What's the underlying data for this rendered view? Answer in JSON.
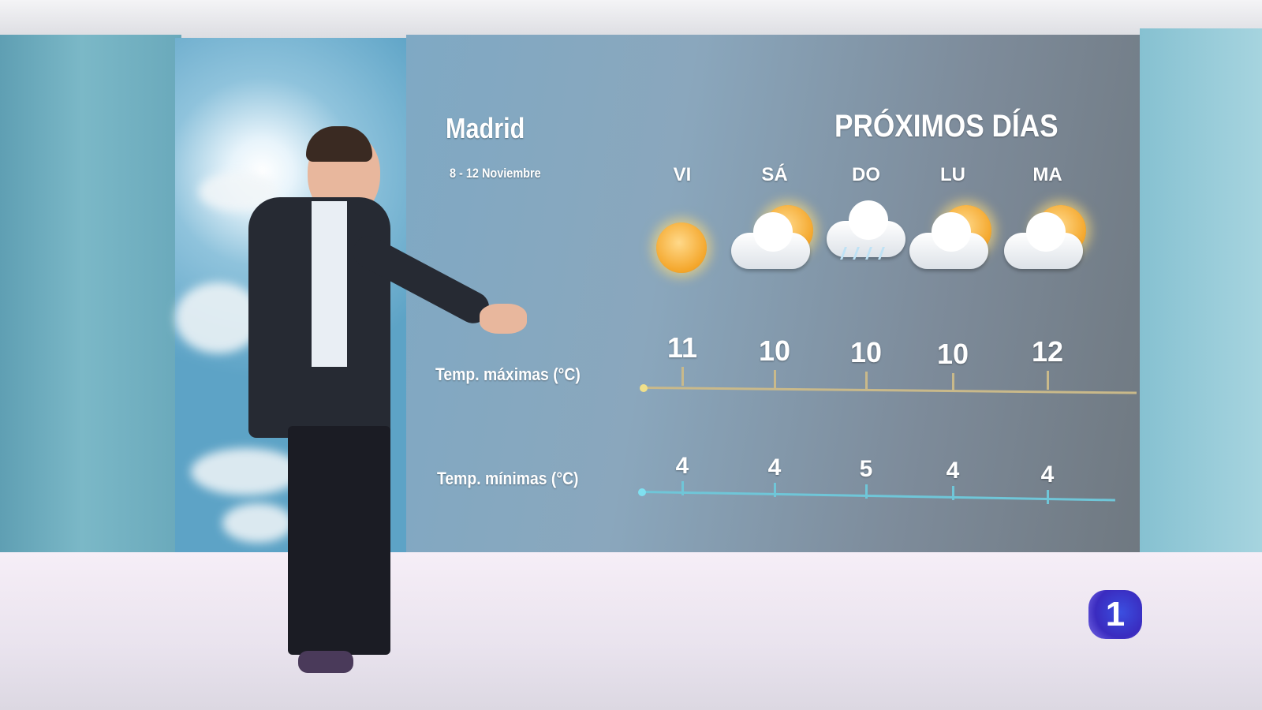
{
  "forecast": {
    "city": "Madrid",
    "dates": "8 - 12 Noviembre",
    "heading": "PRÓXIMOS DÍAS",
    "max_label": "Temp. máximas (°C)",
    "min_label": "Temp. mínimas (°C)",
    "days": [
      {
        "day": "VI",
        "icon": "sun-icon",
        "max": "11",
        "min": "4"
      },
      {
        "day": "SÁ",
        "icon": "sun-behind-cloud-icon",
        "max": "10",
        "min": "4"
      },
      {
        "day": "DO",
        "icon": "rain-cloud-icon",
        "max": "10",
        "min": "5"
      },
      {
        "day": "LU",
        "icon": "sun-behind-cloud-icon",
        "max": "10",
        "min": "4"
      },
      {
        "day": "MA",
        "icon": "sun-behind-cloud-icon",
        "max": "12",
        "min": "4"
      }
    ],
    "colors": {
      "max_axis": "#c9b98a",
      "min_axis": "#6fc6d8"
    }
  },
  "logo": {
    "text": "1",
    "color": "#3a2bbf"
  }
}
